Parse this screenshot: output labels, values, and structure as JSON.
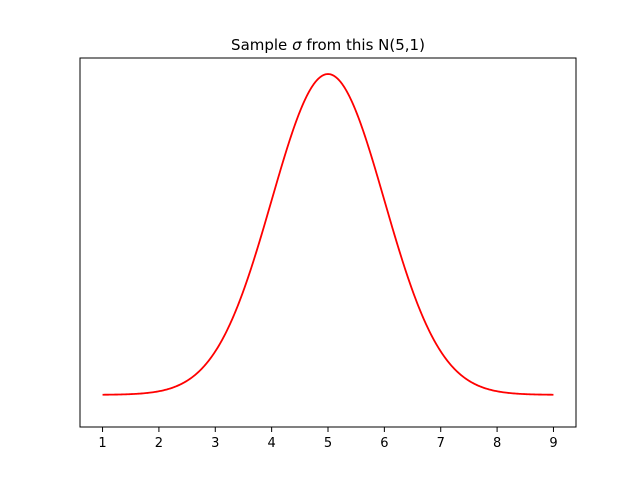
{
  "chart_data": {
    "type": "line",
    "title_prefix": "Sample ",
    "title_symbol": "σ",
    "title_suffix": " from this N(5,1)",
    "xlabel": "",
    "ylabel": "",
    "xlim": [
      0.6,
      9.4
    ],
    "ylim": [
      -0.04,
      0.4189
    ],
    "xticks": [
      "1",
      "2",
      "3",
      "4",
      "5",
      "6",
      "7",
      "8",
      "9"
    ],
    "xtick_values": [
      1,
      2,
      3,
      4,
      5,
      6,
      7,
      8,
      9
    ],
    "y_axis_ticks_visible": false,
    "grid": false,
    "series": [
      {
        "distribution": "normal",
        "mean": 5,
        "std": 1,
        "x_range": [
          1,
          9
        ],
        "color": "#ff0000"
      }
    ]
  }
}
